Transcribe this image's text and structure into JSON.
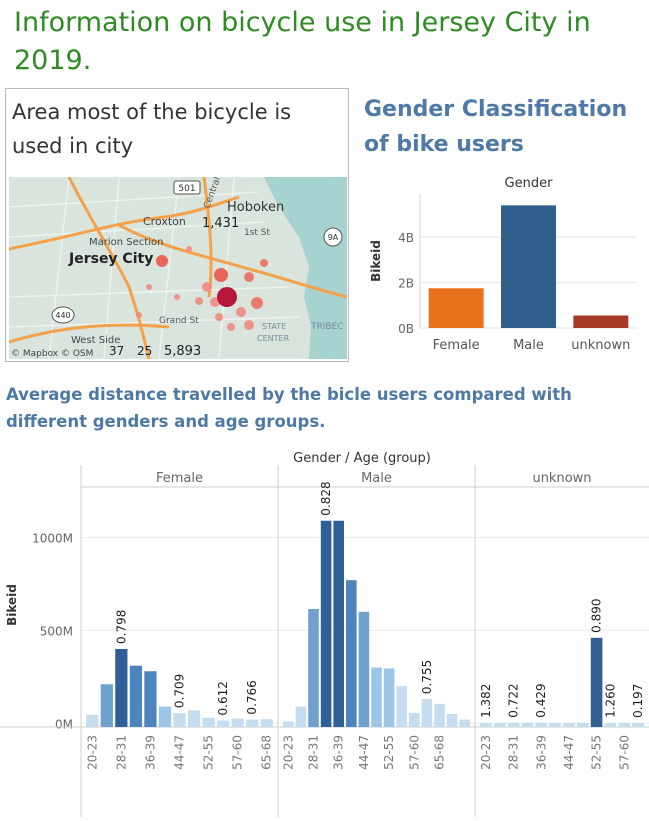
{
  "title": "Information on bicycle use in Jersey City in 2019.",
  "map": {
    "title": "Area most of the bicycle is used in city",
    "labels": {
      "hoboken": "Hoboken",
      "jersey_city": "Jersey City",
      "croxton": "Croxton",
      "marion": "Marion Section",
      "westside": "West Side",
      "central": "Central Ave",
      "st": "1st St",
      "grand": "Grand St",
      "state": "STATE",
      "center": "CENTER",
      "tribeca": "TRIBEC",
      "r501": "501",
      "r9a": "9A",
      "r440": "440",
      "v1431": "1,431",
      "v37": "37",
      "v25": "25",
      "v5893": "5,893",
      "attribution": "© Mapbox © OSM"
    }
  },
  "gender_title": "Gender Classification of bike users",
  "dist_title": "Average distance travelled by the bicle users compared with different genders and age groups.",
  "chart_data": [
    {
      "type": "bar",
      "title": "Gender",
      "categories": [
        "Female",
        "Male",
        "unknown"
      ],
      "values": [
        1.75,
        5.4,
        0.55
      ],
      "colors": [
        "#e8711c",
        "#2e5e8c",
        "#a63a24"
      ],
      "ylabel": "Bikeid",
      "yticks": [
        0,
        2,
        4
      ],
      "ytick_labels": [
        "0B",
        "2B",
        "4B"
      ],
      "ylim": [
        0,
        5.9
      ],
      "grid": true
    },
    {
      "type": "bar",
      "title": "Gender / Age (group)",
      "ylabel": "Bikeid",
      "yticks": [
        0,
        500,
        1000
      ],
      "ytick_labels": [
        "0M",
        "500M",
        "1000M"
      ],
      "ylim": [
        -20,
        1390
      ],
      "grid": true,
      "panels": [
        {
          "name": "Female",
          "age_labels": [
            "20-23",
            "28-31",
            "36-39",
            "44-47",
            "52-55",
            "57-60",
            "65-68"
          ],
          "values": [
            45,
            210,
            400,
            310,
            280,
            90,
            55,
            70,
            30,
            15,
            25,
            20,
            22
          ],
          "data_labels": [
            {
              "index": 2,
              "text": "0.798"
            },
            {
              "index": 6,
              "text": "0.709"
            },
            {
              "index": 9,
              "text": "0.612"
            },
            {
              "index": 11,
              "text": "0.766"
            }
          ]
        },
        {
          "name": "Male",
          "age_labels": [
            "20-23",
            "28-31",
            "36-39",
            "44-47",
            "52-55",
            "57-60",
            "65-68"
          ],
          "values": [
            10,
            90,
            615,
            1090,
            1090,
            770,
            600,
            300,
            295,
            200,
            55,
            130,
            105,
            50,
            20
          ],
          "data_labels": [
            {
              "index": 3,
              "text": "0.828"
            },
            {
              "index": 11,
              "text": "0.755"
            }
          ]
        },
        {
          "name": "unknown",
          "age_labels": [
            "20-23",
            "28-31",
            "36-39",
            "44-47",
            "52-55",
            "57-60"
          ],
          "values": [
            2,
            2,
            3,
            2,
            3,
            2,
            2,
            2,
            460,
            2,
            2,
            2
          ],
          "data_labels": [
            {
              "index": 0,
              "text": "1.382"
            },
            {
              "index": 2,
              "text": "0.722"
            },
            {
              "index": 4,
              "text": "0.429"
            },
            {
              "index": 8,
              "text": "0.890"
            },
            {
              "index": 9,
              "text": "1.260"
            },
            {
              "index": 11,
              "text": "0.197"
            }
          ]
        }
      ]
    }
  ]
}
